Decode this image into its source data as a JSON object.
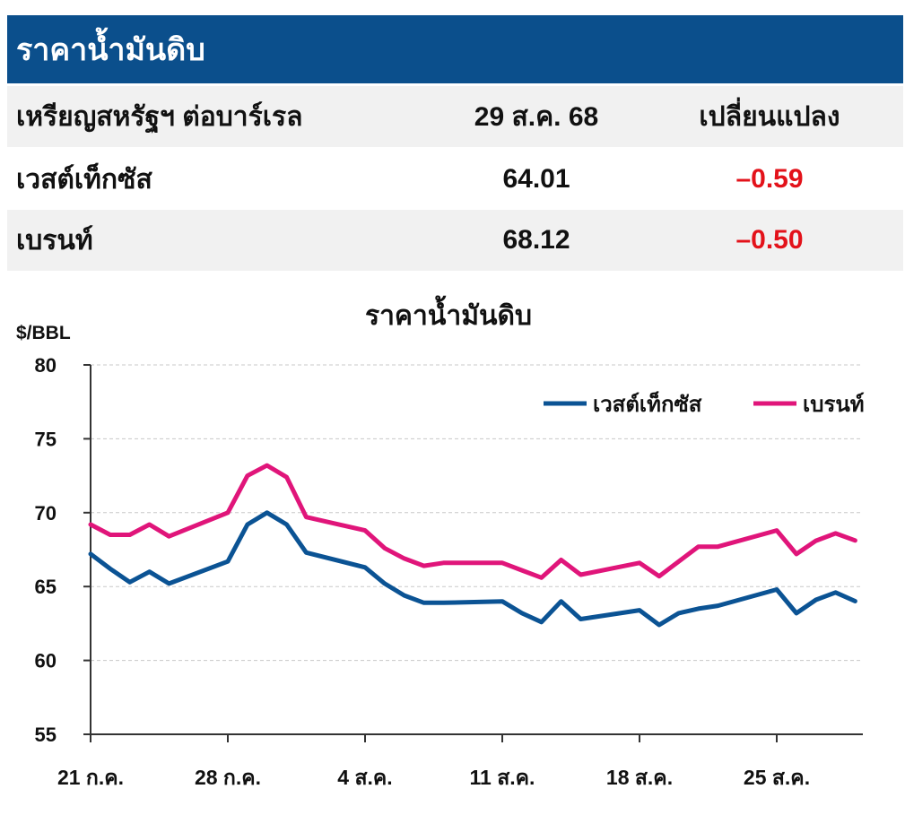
{
  "header": {
    "title": "ราคาน้ำมันดิบ"
  },
  "table": {
    "columns": [
      "เหรียญสหรัฐฯ ต่อบาร์เรล",
      "29 ส.ค. 68",
      "เปลี่ยนแปลง"
    ],
    "rows": [
      {
        "name": "เวสต์เท็กซัส",
        "price": "64.01",
        "change": "–0.59"
      },
      {
        "name": "เบรนท์",
        "price": "68.12",
        "change": "–0.50"
      }
    ]
  },
  "chart_data": {
    "type": "line",
    "title": "ราคาน้ำมันดิบ",
    "unit_label": "$/BBL",
    "ylim": [
      55,
      80
    ],
    "yticks": [
      "80",
      "75",
      "70",
      "65",
      "60",
      "55"
    ],
    "xticks": [
      "21 ก.ค.",
      "28 ก.ค.",
      "4 ส.ค.",
      "11 ส.ค.",
      "18 ส.ค.",
      "25 ส.ค."
    ],
    "x": [
      "2025-07-21",
      "2025-07-22",
      "2025-07-23",
      "2025-07-24",
      "2025-07-25",
      "2025-07-28",
      "2025-07-29",
      "2025-07-30",
      "2025-07-31",
      "2025-08-01",
      "2025-08-04",
      "2025-08-05",
      "2025-08-06",
      "2025-08-07",
      "2025-08-08",
      "2025-08-11",
      "2025-08-12",
      "2025-08-13",
      "2025-08-14",
      "2025-08-15",
      "2025-08-18",
      "2025-08-19",
      "2025-08-20",
      "2025-08-21",
      "2025-08-22",
      "2025-08-25",
      "2025-08-26",
      "2025-08-27",
      "2025-08-28",
      "2025-08-29"
    ],
    "grid": true,
    "legend": "top-right",
    "series": [
      {
        "name": "เวสต์เท็กซัส",
        "color": "#0b5394",
        "values": [
          67.2,
          66.2,
          65.3,
          66.0,
          65.2,
          66.7,
          69.2,
          70.0,
          69.2,
          67.3,
          66.3,
          65.2,
          64.4,
          63.9,
          63.9,
          64.0,
          63.2,
          62.6,
          64.0,
          62.8,
          63.4,
          62.4,
          63.2,
          63.5,
          63.7,
          64.8,
          63.2,
          64.1,
          64.6,
          64.01
        ]
      },
      {
        "name": "เบรนท์",
        "color": "#e0157a",
        "values": [
          69.2,
          68.5,
          68.5,
          69.2,
          68.4,
          70.0,
          72.5,
          73.2,
          72.4,
          69.7,
          68.8,
          67.6,
          66.9,
          66.4,
          66.6,
          66.6,
          66.1,
          65.6,
          66.8,
          65.8,
          66.6,
          65.7,
          66.7,
          67.7,
          67.7,
          68.8,
          67.2,
          68.1,
          68.6,
          68.12
        ]
      }
    ]
  }
}
